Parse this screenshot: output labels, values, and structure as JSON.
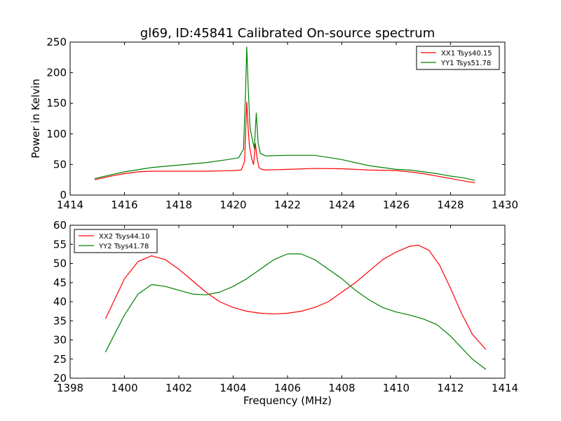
{
  "title": "gl69, ID:45841 Calibrated On-source spectrum",
  "colors": {
    "red": "#ff0000",
    "green": "#008000"
  },
  "chart_data": [
    {
      "type": "line",
      "panel": "top",
      "title": "gl69, ID:45841 Calibrated On-source spectrum",
      "xlabel": "",
      "ylabel": "Power in Kelvin",
      "xlim": [
        1414,
        1430
      ],
      "ylim": [
        0,
        250
      ],
      "xticks": [
        1414,
        1416,
        1418,
        1420,
        1422,
        1424,
        1426,
        1428,
        1430
      ],
      "yticks": [
        0,
        50,
        100,
        150,
        200,
        250
      ],
      "grid": false,
      "legend": "top-right",
      "series": [
        {
          "name": "XX1 Tsys40.15",
          "color": "#ff0000",
          "x": [
            1414.9,
            1415.5,
            1416.0,
            1416.5,
            1417.0,
            1418.0,
            1419.0,
            1419.5,
            1420.0,
            1420.3,
            1420.42,
            1420.5,
            1420.55,
            1420.6,
            1420.68,
            1420.75,
            1420.82,
            1420.88,
            1420.95,
            1421.05,
            1421.2,
            1422.0,
            1423.0,
            1424.0,
            1425.0,
            1426.0,
            1426.5,
            1427.0,
            1427.5,
            1428.0,
            1428.5,
            1428.9
          ],
          "y": [
            25,
            31,
            35,
            38,
            39,
            39,
            39,
            39.5,
            40,
            41,
            55,
            152,
            110,
            80,
            60,
            50,
            84,
            60,
            45,
            42,
            41,
            42,
            43.5,
            43,
            41,
            40,
            38,
            35,
            31,
            27,
            23,
            20
          ]
        },
        {
          "name": "YY1 Tsys51.78",
          "color": "#008000",
          "x": [
            1414.9,
            1415.5,
            1416.0,
            1417.0,
            1418.0,
            1419.0,
            1419.8,
            1420.2,
            1420.38,
            1420.45,
            1420.5,
            1420.55,
            1420.62,
            1420.7,
            1420.78,
            1420.85,
            1420.92,
            1421.0,
            1421.2,
            1422.0,
            1423.0,
            1424.0,
            1425.0,
            1426.0,
            1426.5,
            1427.0,
            1427.5,
            1428.0,
            1428.5,
            1428.9
          ],
          "y": [
            27,
            33,
            38,
            45,
            49,
            53,
            58,
            61,
            75,
            160,
            242,
            180,
            110,
            92,
            76,
            134,
            85,
            68,
            64,
            65,
            65,
            58,
            48,
            42,
            41,
            38,
            35,
            31,
            28,
            24
          ]
        }
      ]
    },
    {
      "type": "line",
      "panel": "bottom",
      "title": "",
      "xlabel": "Frequency (MHz)",
      "ylabel": "",
      "xlim": [
        1398,
        1414
      ],
      "ylim": [
        20,
        60
      ],
      "xticks": [
        1398,
        1400,
        1402,
        1404,
        1406,
        1408,
        1410,
        1412,
        1414
      ],
      "yticks": [
        20,
        25,
        30,
        35,
        40,
        45,
        50,
        55,
        60
      ],
      "grid": false,
      "legend": "top-left",
      "series": [
        {
          "name": "XX2 Tsys44.10",
          "color": "#ff0000",
          "x": [
            1399.3,
            1399.6,
            1400.0,
            1400.5,
            1401.0,
            1401.5,
            1402.0,
            1402.5,
            1403.0,
            1403.5,
            1404.0,
            1404.5,
            1405.0,
            1405.5,
            1406.0,
            1406.5,
            1407.0,
            1407.5,
            1408.0,
            1408.5,
            1409.0,
            1409.5,
            1410.0,
            1410.5,
            1410.8,
            1411.2,
            1411.6,
            1412.0,
            1412.4,
            1412.8,
            1413.3
          ],
          "y": [
            35.5,
            40,
            46,
            50.5,
            52,
            51,
            48.5,
            45.5,
            42.5,
            40,
            38.5,
            37.5,
            37,
            36.8,
            37,
            37.5,
            38.5,
            40,
            42.5,
            45,
            48,
            51,
            53,
            54.5,
            54.8,
            53.5,
            49.5,
            43.5,
            37,
            31.5,
            27.5
          ]
        },
        {
          "name": "YY2 Tsys41.78",
          "color": "#008000",
          "x": [
            1399.3,
            1399.6,
            1400.0,
            1400.5,
            1401.0,
            1401.5,
            1402.0,
            1402.5,
            1403.0,
            1403.5,
            1404.0,
            1404.5,
            1405.0,
            1405.5,
            1406.0,
            1406.5,
            1407.0,
            1407.5,
            1408.0,
            1408.5,
            1409.0,
            1409.5,
            1410.0,
            1410.5,
            1411.0,
            1411.5,
            1412.0,
            1412.4,
            1412.8,
            1413.3
          ],
          "y": [
            26.8,
            31,
            36.5,
            42,
            44.5,
            44,
            43,
            42,
            41.8,
            42.5,
            44,
            46,
            48.5,
            51,
            52.5,
            52.5,
            51,
            48.5,
            46,
            43,
            40.5,
            38.5,
            37.3,
            36.5,
            35.5,
            34,
            31,
            28,
            25,
            22.3
          ]
        }
      ]
    }
  ]
}
